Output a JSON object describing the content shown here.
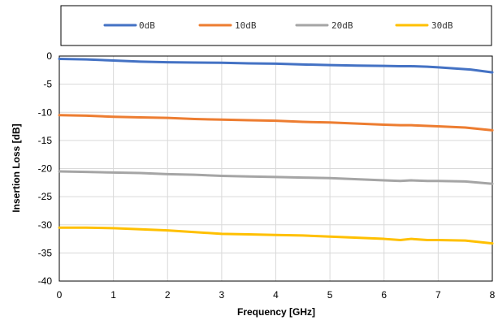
{
  "chart_data": {
    "type": "line",
    "title": "",
    "xlabel": "Frequency [GHz]",
    "ylabel": "Insertion Loss [dB]",
    "xlim": [
      0,
      8
    ],
    "ylim": [
      -40,
      0
    ],
    "xticks": [
      "0",
      "1",
      "2",
      "3",
      "4",
      "5",
      "6",
      "7",
      "8"
    ],
    "yticks": [
      "0",
      "-5",
      "-10",
      "-15",
      "-20",
      "-25",
      "-30",
      "-35",
      "-40"
    ],
    "grid": true,
    "legend_position": "top",
    "series": [
      {
        "name": "0dB",
        "color": "#4472C4",
        "x": [
          0,
          0.5,
          1,
          1.5,
          2,
          2.5,
          3,
          3.5,
          4,
          4.5,
          5,
          5.5,
          6,
          6.3,
          6.5,
          6.8,
          7,
          7.3,
          7.6,
          8
        ],
        "y": [
          -0.5,
          -0.6,
          -0.8,
          -1.0,
          -1.1,
          -1.15,
          -1.2,
          -1.3,
          -1.35,
          -1.5,
          -1.6,
          -1.7,
          -1.75,
          -1.8,
          -1.8,
          -1.9,
          -2.0,
          -2.2,
          -2.4,
          -2.9
        ]
      },
      {
        "name": "10dB",
        "color": "#ED7D31",
        "x": [
          0,
          0.5,
          1,
          1.5,
          2,
          2.5,
          3,
          3.5,
          4,
          4.5,
          5,
          5.5,
          6,
          6.3,
          6.5,
          7,
          7.5,
          8
        ],
        "y": [
          -10.5,
          -10.6,
          -10.8,
          -10.9,
          -11.0,
          -11.2,
          -11.3,
          -11.4,
          -11.5,
          -11.7,
          -11.8,
          -12.0,
          -12.2,
          -12.3,
          -12.3,
          -12.5,
          -12.7,
          -13.2
        ]
      },
      {
        "name": "20dB",
        "color": "#A5A5A5",
        "x": [
          0,
          0.5,
          1,
          1.5,
          2,
          2.5,
          3,
          3.5,
          4,
          4.5,
          5,
          5.5,
          6,
          6.3,
          6.5,
          6.8,
          7,
          7.5,
          8
        ],
        "y": [
          -20.5,
          -20.6,
          -20.7,
          -20.8,
          -21.0,
          -21.1,
          -21.3,
          -21.4,
          -21.5,
          -21.6,
          -21.7,
          -21.9,
          -22.1,
          -22.2,
          -22.1,
          -22.2,
          -22.2,
          -22.3,
          -22.7
        ]
      },
      {
        "name": "30dB",
        "color": "#FFC000",
        "x": [
          0,
          0.5,
          1,
          1.5,
          2,
          2.5,
          3,
          3.5,
          4,
          4.5,
          5,
          5.5,
          6,
          6.3,
          6.5,
          6.8,
          7,
          7.5,
          8
        ],
        "y": [
          -30.5,
          -30.5,
          -30.6,
          -30.8,
          -31.0,
          -31.3,
          -31.6,
          -31.7,
          -31.8,
          -31.9,
          -32.1,
          -32.3,
          -32.5,
          -32.7,
          -32.5,
          -32.7,
          -32.7,
          -32.8,
          -33.3
        ]
      }
    ]
  }
}
